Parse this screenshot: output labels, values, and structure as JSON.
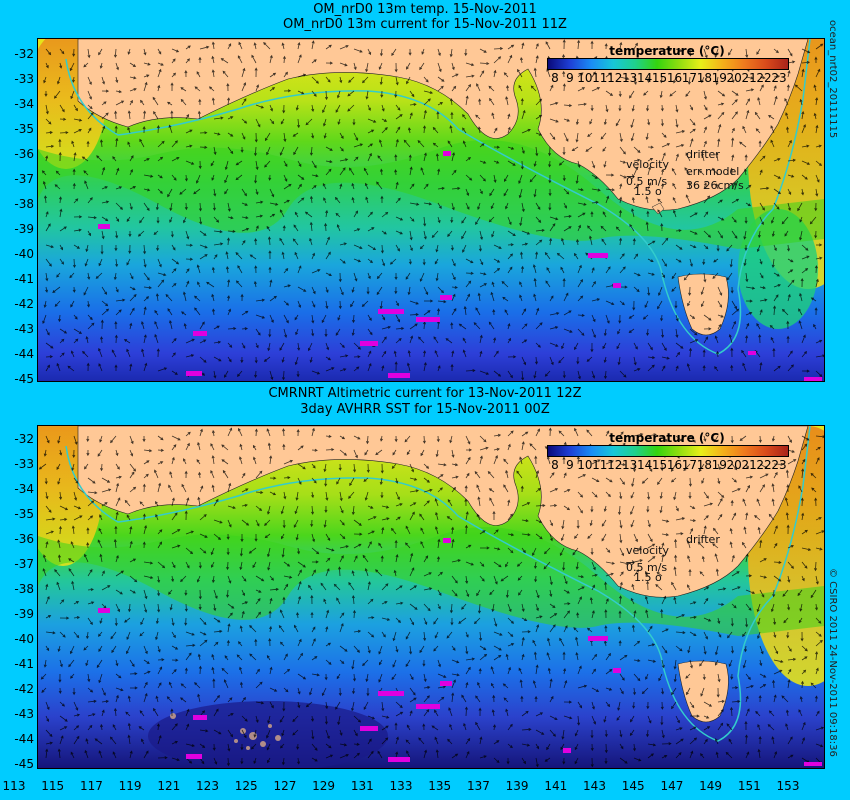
{
  "panels": [
    {
      "title_line1": "OM_nrD0 13m temp. 15-Nov-2011",
      "title_line2": "OM_nrD0 13m current for 15-Nov-2011 11Z",
      "legend": {
        "velocity_label": "velocity",
        "velocity_value": "0.5 m/s",
        "velocity_scale": "1.5 o",
        "drifter_label": "drifter",
        "err_label": "err model",
        "err_value": "36 26cm/s"
      },
      "side_label": "ocean_nrt02_20111115"
    },
    {
      "title_line1": "CMRNRT Altimetric current for 13-Nov-2011 12Z",
      "title_line2": "3day AVHRR SST for 15-Nov-2011 00Z",
      "legend": {
        "velocity_label": "velocity",
        "velocity_value": "0.5 m/s",
        "velocity_scale": "1.5 o",
        "drifter_label": "drifter"
      },
      "side_label": "© CSIRO 2011 24-Nov-2011 09:18:36"
    }
  ],
  "colorbar": {
    "title": "temperature (°C)",
    "ticks": [
      "8",
      "9",
      "10",
      "11",
      "12",
      "13",
      "14",
      "15",
      "16",
      "17",
      "18",
      "19",
      "20",
      "21",
      "22",
      "23"
    ]
  },
  "y_axis": [
    "-32",
    "-33",
    "-34",
    "-35",
    "-36",
    "-37",
    "-38",
    "-39",
    "-40",
    "-41",
    "-42",
    "-43",
    "-44",
    "-45"
  ],
  "x_axis": [
    "113",
    "115",
    "117",
    "119",
    "121",
    "123",
    "125",
    "127",
    "129",
    "131",
    "133",
    "135",
    "137",
    "139",
    "141",
    "143",
    "145",
    "147",
    "149",
    "151",
    "153"
  ],
  "colors": {
    "background": "#00ccff",
    "land": "#ffc896",
    "drifter": "#e000e0",
    "arrow": "#000000"
  }
}
